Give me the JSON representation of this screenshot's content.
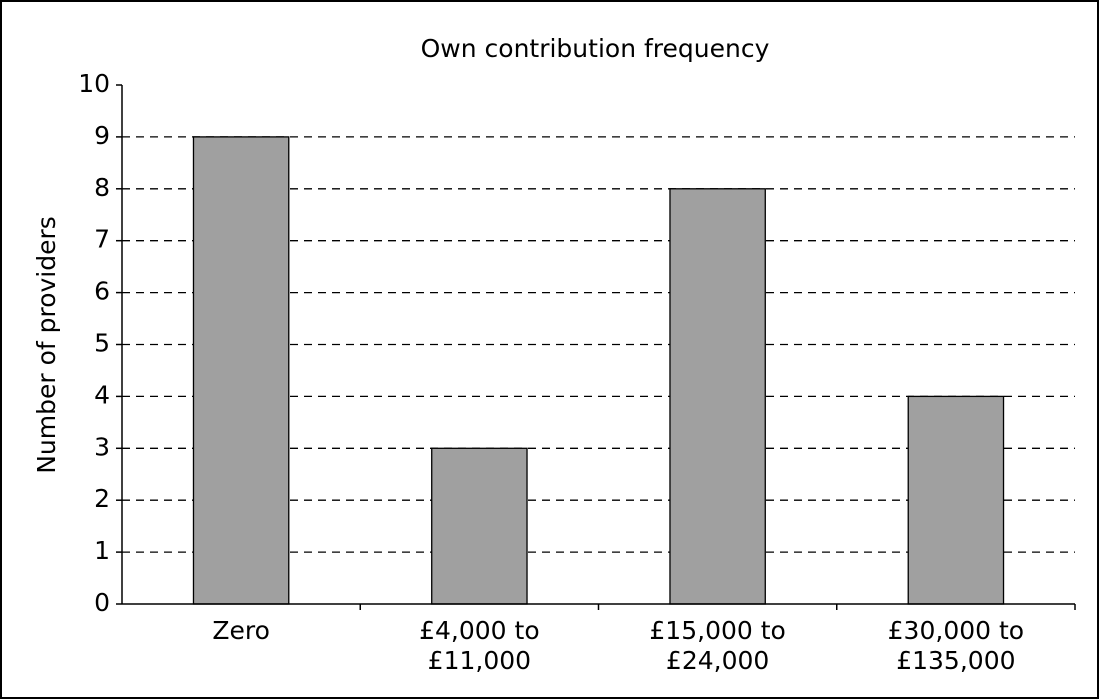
{
  "chart_data": {
    "type": "bar",
    "title": "Own contribution frequency",
    "y_label": "Number of providers",
    "categories": [
      [
        "Zero"
      ],
      [
        "£4,000 to",
        "£11,000"
      ],
      [
        "£15,000 to",
        "£24,000"
      ],
      [
        "£30,000 to",
        "£135,000"
      ]
    ],
    "values": [
      9,
      3,
      8,
      4
    ],
    "color": "#a0a0a0",
    "ylim": [
      0,
      10
    ],
    "yticks": [
      0,
      1,
      2,
      3,
      4,
      5,
      6,
      7,
      8,
      9,
      10
    ],
    "grid": true
  }
}
